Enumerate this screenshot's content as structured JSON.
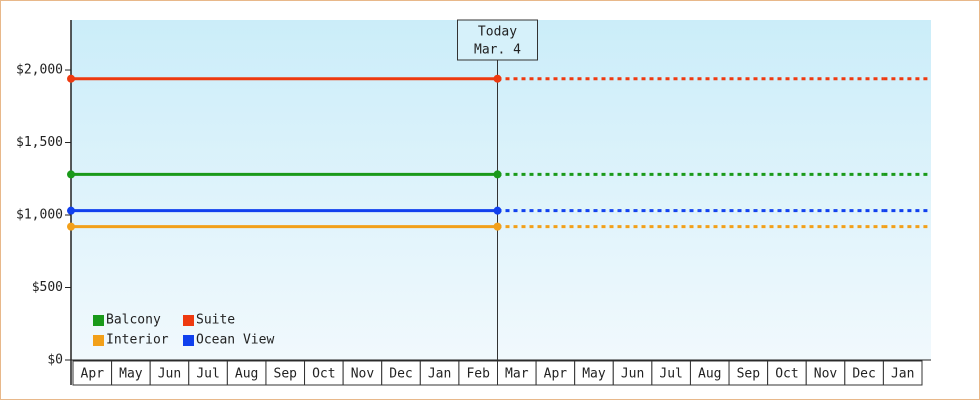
{
  "chart_data": {
    "type": "line",
    "categories": [
      "Apr",
      "May",
      "Jun",
      "Jul",
      "Aug",
      "Sep",
      "Oct",
      "Nov",
      "Dec",
      "Jan",
      "Feb",
      "Mar",
      "Apr",
      "May",
      "Jun",
      "Jul",
      "Aug",
      "Sep",
      "Oct",
      "Nov",
      "Dec",
      "Jan"
    ],
    "series": [
      {
        "name": "Balcony",
        "color": "#1a9a1a",
        "values": [
          1280,
          1280,
          1280,
          1280,
          1280,
          1280,
          1280,
          1280,
          1280,
          1280,
          1280,
          1280,
          1280,
          1280,
          1280,
          1280,
          1280,
          1280,
          1280,
          1280,
          1280,
          1280
        ]
      },
      {
        "name": "Suite",
        "color": "#ee3a10",
        "values": [
          1940,
          1940,
          1940,
          1940,
          1940,
          1940,
          1940,
          1940,
          1940,
          1940,
          1940,
          1940,
          1940,
          1940,
          1940,
          1940,
          1940,
          1940,
          1940,
          1940,
          1940,
          1940
        ]
      },
      {
        "name": "Interior",
        "color": "#f2a01a",
        "values": [
          920,
          920,
          920,
          920,
          920,
          920,
          920,
          920,
          920,
          920,
          920,
          920,
          920,
          920,
          920,
          920,
          920,
          920,
          920,
          920,
          920,
          920
        ]
      },
      {
        "name": "Ocean View",
        "color": "#1040ee",
        "values": [
          1030,
          1030,
          1030,
          1030,
          1030,
          1030,
          1030,
          1030,
          1030,
          1030,
          1030,
          1030,
          1030,
          1030,
          1030,
          1030,
          1030,
          1030,
          1030,
          1030,
          1030,
          1030
        ]
      }
    ],
    "today": {
      "label": "Today",
      "date": "Mar. 4"
    },
    "ylim": [
      0,
      2345
    ],
    "yticks": [
      {
        "value": 0,
        "label": "$0"
      },
      {
        "value": 500,
        "label": "$500"
      },
      {
        "value": 1000,
        "label": "$1,000"
      },
      {
        "value": 1500,
        "label": "$1,500"
      },
      {
        "value": 2000,
        "label": "$2,000"
      }
    ]
  }
}
